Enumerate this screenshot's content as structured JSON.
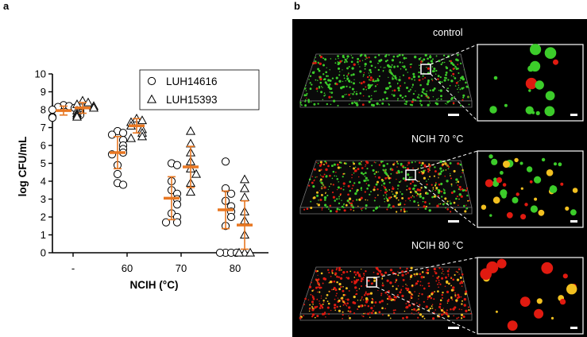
{
  "panels": {
    "a": "a",
    "b": "b"
  },
  "chart_data": {
    "type": "scatter",
    "xlabel": "NCIH (°C)",
    "ylabel": "log CFU/mL",
    "categories": [
      "-",
      "60",
      "70",
      "80"
    ],
    "ylim": [
      0,
      10
    ],
    "yticks": [
      0,
      1,
      2,
      3,
      4,
      5,
      6,
      7,
      8,
      9,
      10
    ],
    "grid": false,
    "legend_position": "top-right",
    "error_bar_color": "#E87722",
    "marker_color": "#000000",
    "series": [
      {
        "name": "LUH14616",
        "marker": "circle",
        "points": [
          {
            "category": "-",
            "values": [
              8.25,
              8.2,
              8.15,
              8.1,
              8.0,
              7.95,
              7.9,
              7.85,
              7.8,
              7.7,
              7.6,
              7.55
            ]
          },
          {
            "category": "60",
            "values": [
              6.8,
              6.7,
              6.6,
              6.3,
              6.0,
              5.8,
              5.6,
              5.5,
              4.9,
              4.4,
              3.9,
              3.8
            ]
          },
          {
            "category": "70",
            "values": [
              5.0,
              4.9,
              4.0,
              3.5,
              3.3,
              3.0,
              2.7,
              2.2,
              2.0,
              1.7,
              1.7
            ]
          },
          {
            "category": "80",
            "values": [
              5.1,
              3.6,
              3.3,
              2.9,
              2.6,
              2.3,
              2.0,
              1.5,
              0,
              0,
              0,
              0
            ]
          }
        ],
        "means": [
          7.95,
          5.6,
          3.05,
          2.4
        ],
        "errors": [
          0.25,
          0.9,
          1.2,
          1.05
        ]
      },
      {
        "name": "LUH15393",
        "marker": "triangle",
        "points": [
          {
            "category": "-",
            "values": [
              8.5,
              8.4,
              8.3,
              8.2,
              8.1,
              7.95,
              7.8,
              7.7,
              7.6
            ]
          },
          {
            "category": "60",
            "values": [
              7.5,
              7.4,
              7.3,
              7.1,
              6.9,
              6.7,
              6.5,
              6.4
            ]
          },
          {
            "category": "70",
            "values": [
              6.8,
              6.1,
              5.6,
              5.1,
              4.7,
              4.4,
              3.9,
              3.4
            ]
          },
          {
            "category": "80",
            "values": [
              4.1,
              3.6,
              3.1,
              2.3,
              1.8,
              1.0,
              0,
              0,
              0
            ]
          }
        ],
        "means": [
          8.1,
          7.1,
          4.8,
          1.55
        ],
        "errors": [
          0.3,
          0.4,
          1.15,
          1.35
        ]
      }
    ]
  },
  "microscopy": {
    "conditions": [
      {
        "label": "control",
        "scheme": "green"
      },
      {
        "label": "NCIH 70 °C",
        "scheme": "mixed"
      },
      {
        "label": "NCIH 80 °C",
        "scheme": "red"
      }
    ],
    "colors": {
      "green": "#3ccc2a",
      "red": "#e01a10",
      "yellow": "#f2c020",
      "box": "#ffffff"
    }
  }
}
